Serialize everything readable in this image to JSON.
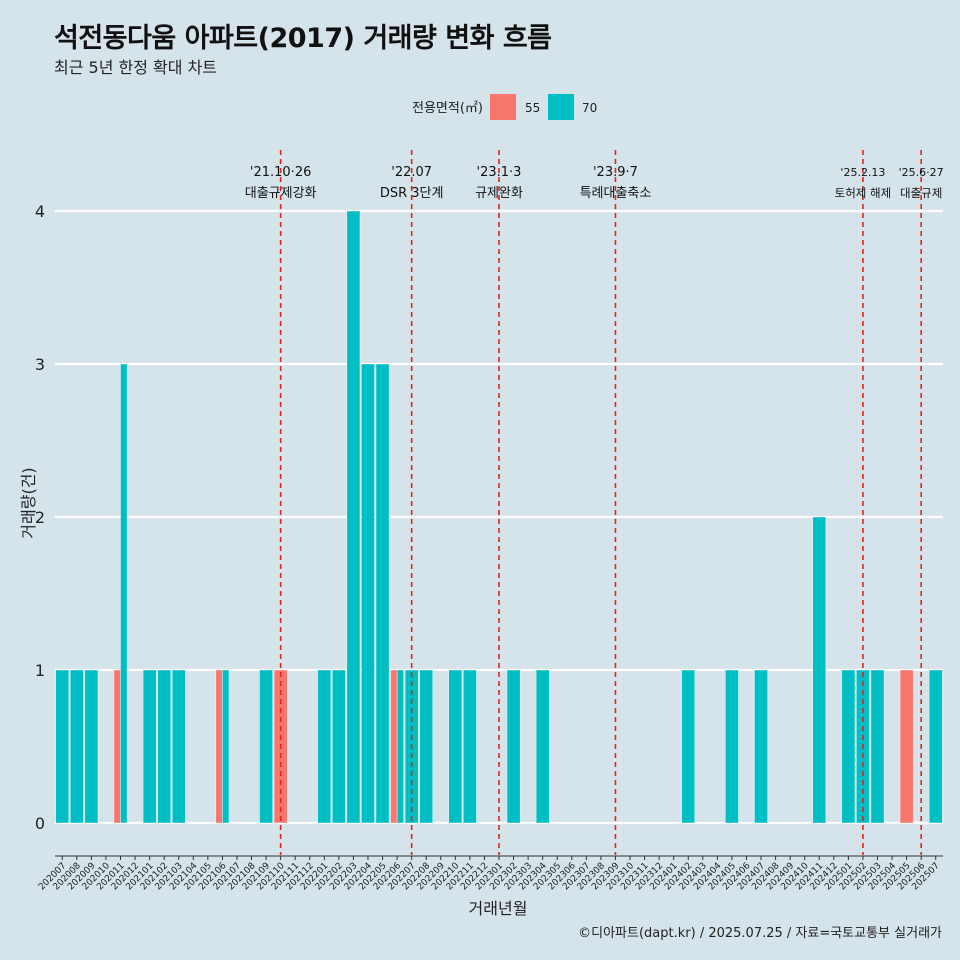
{
  "title": "석전동다움 아파트(2017) 거래량 변화 흐름",
  "subtitle": "최근 5년 한정 확대 차트",
  "caption": "©디아파트(dapt.kr) / 2025.07.25 / 자료=국토교통부 실거래가",
  "colors": {
    "s55": "#f8766d",
    "s70": "#00bfc4",
    "vline": "#e0251b",
    "grid": "#ffffff"
  },
  "chart_data": {
    "type": "bar",
    "stacking": "dodge",
    "xlabel": "거래년월",
    "ylabel": "거래량(건)",
    "ylim": [
      0,
      4
    ],
    "yticks": [
      0,
      1,
      2,
      3,
      4
    ],
    "legend": {
      "title": "전용면적(㎡)",
      "position": "top"
    },
    "categories": [
      "202007",
      "202008",
      "202009",
      "202010",
      "202011",
      "202012",
      "202101",
      "202102",
      "202103",
      "202104",
      "202105",
      "202106",
      "202107",
      "202108",
      "202109",
      "202110",
      "202111",
      "202112",
      "202201",
      "202202",
      "202203",
      "202204",
      "202205",
      "202206",
      "202207",
      "202208",
      "202209",
      "202210",
      "202211",
      "202212",
      "202301",
      "202302",
      "202303",
      "202304",
      "202305",
      "202306",
      "202307",
      "202308",
      "202309",
      "202310",
      "202311",
      "202312",
      "202401",
      "202402",
      "202403",
      "202404",
      "202405",
      "202406",
      "202407",
      "202408",
      "202409",
      "202410",
      "202411",
      "202412",
      "202501",
      "202502",
      "202503",
      "202504",
      "202505",
      "202506",
      "202507"
    ],
    "series": [
      {
        "name": "55",
        "values": [
          0,
          0,
          0,
          0,
          1,
          0,
          0,
          0,
          0,
          0,
          0,
          1,
          0,
          0,
          0,
          1,
          0,
          0,
          0,
          0,
          0,
          0,
          0,
          1,
          0,
          0,
          0,
          0,
          0,
          0,
          0,
          0,
          0,
          0,
          0,
          0,
          0,
          0,
          0,
          0,
          0,
          0,
          0,
          0,
          0,
          0,
          0,
          0,
          0,
          0,
          0,
          0,
          0,
          0,
          0,
          0,
          0,
          0,
          1,
          0,
          0
        ]
      },
      {
        "name": "70",
        "values": [
          1,
          1,
          1,
          0,
          3,
          0,
          1,
          1,
          1,
          0,
          0,
          1,
          0,
          0,
          1,
          0,
          0,
          0,
          1,
          1,
          4,
          3,
          3,
          1,
          1,
          1,
          0,
          1,
          1,
          0,
          0,
          1,
          0,
          1,
          0,
          0,
          0,
          0,
          0,
          0,
          0,
          0,
          0,
          1,
          0,
          0,
          1,
          0,
          1,
          0,
          0,
          0,
          2,
          0,
          1,
          1,
          1,
          0,
          0,
          0,
          1
        ]
      }
    ],
    "annotations": [
      {
        "at": "202110",
        "date": "'21.10·26",
        "label": "대출규제강화"
      },
      {
        "at": "202207",
        "date": "'22.07",
        "label": "DSR 3단계"
      },
      {
        "at": "202301",
        "date": "'23.1·3",
        "label": "규제완화"
      },
      {
        "at": "202309",
        "date": "'23.9·7",
        "label": "특례대출축소"
      },
      {
        "at": "202502",
        "date": "'25.2.13",
        "label": "토허제 해제"
      },
      {
        "at": "202506",
        "date": "'25.6·27",
        "label": "대출규제"
      }
    ]
  }
}
